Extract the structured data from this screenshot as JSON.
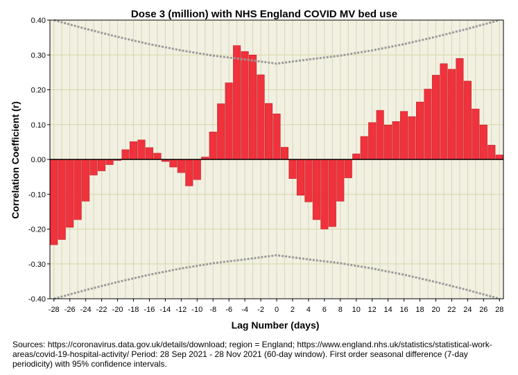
{
  "chart_data": {
    "type": "bar",
    "title": "Dose 3 (million) with NHS England COVID MV bed use",
    "xlabel": "Lag Number (days)",
    "ylabel": "Correlation Coefficient (r)",
    "xlim": [
      -28,
      28
    ],
    "ylim": [
      -0.4,
      0.4
    ],
    "x_ticks": [
      -28,
      -26,
      -24,
      -22,
      -20,
      -18,
      -16,
      -14,
      -12,
      -10,
      -8,
      -6,
      -4,
      -2,
      0,
      2,
      4,
      6,
      8,
      10,
      12,
      14,
      16,
      18,
      20,
      22,
      24,
      26,
      28
    ],
    "x_tick_labels": [
      "-28",
      "-26",
      "-24",
      "-22",
      "-20",
      "-18",
      "-16",
      "-14",
      "-12",
      "-10",
      "-8",
      "-6",
      "-4",
      "-2",
      "0",
      "2",
      "4",
      "6",
      "8",
      "10",
      "12",
      "14",
      "16",
      "18",
      "20",
      "22",
      "24",
      "26",
      "28"
    ],
    "y_ticks": [
      -0.4,
      -0.3,
      -0.2,
      -0.1,
      0,
      0.1,
      0.2,
      0.3,
      0.4
    ],
    "y_tick_labels": [
      "-0.40",
      "-0.30",
      "-0.20",
      "-0.10",
      "0.00",
      "0.10",
      "0.20",
      "0.30",
      "0.40"
    ],
    "grid": true,
    "colors": {
      "bar": "#f0323c",
      "bar_edge": "#b81e26",
      "plot_bg": "#f1f0e3",
      "grid": "#d8d8a8",
      "ci": "#9a9a9a"
    },
    "series": [
      {
        "name": "Correlation",
        "x": [
          -28,
          -27,
          -26,
          -25,
          -24,
          -23,
          -22,
          -21,
          -20,
          -19,
          -18,
          -17,
          -16,
          -15,
          -14,
          -13,
          -12,
          -11,
          -10,
          -9,
          -8,
          -7,
          -6,
          -5,
          -4,
          -3,
          -2,
          -1,
          0,
          1,
          2,
          3,
          4,
          5,
          6,
          7,
          8,
          9,
          10,
          11,
          12,
          13,
          14,
          15,
          16,
          17,
          18,
          19,
          20,
          21,
          22,
          23,
          24,
          25,
          26,
          27,
          28
        ],
        "values": [
          -0.245,
          -0.23,
          -0.195,
          -0.173,
          -0.12,
          -0.045,
          -0.033,
          -0.015,
          -0.003,
          0.028,
          0.051,
          0.056,
          0.034,
          0.018,
          -0.006,
          -0.022,
          -0.038,
          -0.076,
          -0.058,
          0.007,
          0.079,
          0.16,
          0.22,
          0.327,
          0.31,
          0.3,
          0.243,
          0.161,
          0.131,
          0.035,
          -0.055,
          -0.103,
          -0.122,
          -0.173,
          -0.2,
          -0.193,
          -0.12,
          -0.053,
          0.016,
          0.066,
          0.106,
          0.141,
          0.099,
          0.109,
          0.138,
          0.123,
          0.165,
          0.202,
          0.242,
          0.275,
          0.259,
          0.29,
          0.225,
          0.145,
          0.099,
          0.041,
          0.013
        ]
      }
    ],
    "confidence_interval": {
      "name": "95% confidence intervals",
      "x": [
        -28,
        -24,
        -20,
        -16,
        -12,
        -8,
        -4,
        0,
        4,
        8,
        12,
        16,
        20,
        24,
        28
      ],
      "upper": [
        0.4,
        0.375,
        0.352,
        0.331,
        0.313,
        0.298,
        0.287,
        0.275,
        0.287,
        0.298,
        0.313,
        0.331,
        0.352,
        0.375,
        0.4
      ],
      "lower": [
        -0.4,
        -0.375,
        -0.352,
        -0.331,
        -0.313,
        -0.298,
        -0.287,
        -0.275,
        -0.287,
        -0.298,
        -0.313,
        -0.331,
        -0.352,
        -0.375,
        -0.4
      ]
    }
  },
  "caption": "Sources: https://coronavirus.data.gov.uk/details/download; region = England; https://www.england.nhs.uk/statistics/statistical-work-areas/covid-19-hospital-activity/ Period: 28 Sep 2021 - 28 Nov 2021 (60-day window). First order seasonal difference (7-day periodicity) with 95% confidence intervals."
}
